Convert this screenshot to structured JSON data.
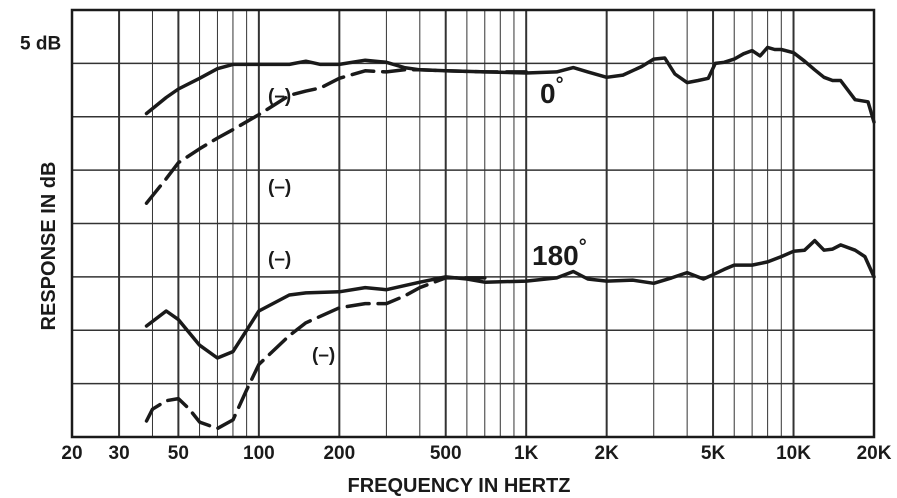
{
  "chart_data": {
    "type": "line",
    "xlabel": "FREQUENCY IN HERTZ",
    "ylabel": "RESPONSE IN dB",
    "x_scale": "log",
    "xlim": [
      20,
      20000
    ],
    "x_ticks": [
      20,
      30,
      50,
      100,
      200,
      500,
      1000,
      2000,
      5000,
      10000,
      20000
    ],
    "x_tick_labels": [
      "20",
      "30",
      "50",
      "100",
      "200",
      "500",
      "1K",
      "2K",
      "5K",
      "10K",
      "20K"
    ],
    "ylim": [
      -30,
      10
    ],
    "y_tick_label": "5 dB",
    "grid": true,
    "colors": {
      "ink": "#1a1a1a",
      "grid": "#333333",
      "background": "#ffffff"
    },
    "annotations": {
      "angle_top": "0",
      "angle_bottom": "180",
      "degree_symbol": "°",
      "solid_top": "(–)",
      "dashed_top": "(–)",
      "solid_bottom": "(–)",
      "dashed_bottom": "(–)"
    },
    "series": [
      {
        "style": "solid",
        "x": [
          38,
          45,
          50,
          60,
          70,
          80,
          100,
          130,
          150,
          170,
          200,
          250,
          300,
          350,
          400,
          500,
          700,
          1000,
          1300,
          1500,
          1700,
          2000,
          2300,
          2700,
          3000,
          3300,
          3600,
          4000,
          4400,
          4800,
          5100,
          5500,
          6000,
          6500,
          7000,
          7500,
          8000,
          8500,
          9000,
          10000,
          11000,
          12000,
          13000,
          14000,
          15000,
          17000,
          19000,
          20000
        ],
        "y": [
          0.3,
          1.8,
          2.6,
          3.6,
          4.5,
          4.9,
          4.9,
          4.9,
          5.2,
          4.9,
          4.9,
          5.3,
          5.1,
          4.6,
          4.4,
          4.3,
          4.2,
          4.1,
          4.2,
          4.6,
          4.2,
          3.7,
          3.9,
          4.7,
          5.4,
          5.5,
          4.0,
          3.2,
          3.4,
          3.6,
          5.0,
          5.1,
          5.4,
          5.9,
          6.2,
          5.7,
          6.5,
          6.3,
          6.3,
          6.0,
          5.2,
          4.4,
          3.7,
          3.4,
          3.4,
          1.6,
          1.4,
          -0.5
        ]
      },
      {
        "style": "dashed",
        "x": [
          38,
          45,
          50,
          60,
          70,
          80,
          100,
          130,
          150,
          170,
          200,
          250,
          300,
          350,
          400,
          500,
          700,
          1000
        ],
        "y": [
          -8.1,
          -5.8,
          -4.3,
          -3.0,
          -2.0,
          -1.2,
          0.2,
          2.0,
          2.4,
          2.7,
          3.6,
          4.3,
          4.2,
          4.4,
          4.4,
          4.3,
          4.2,
          4.2
        ]
      },
      {
        "style": "solid",
        "x": [
          38,
          45,
          50,
          60,
          70,
          80,
          100,
          130,
          150,
          200,
          250,
          300,
          400,
          500,
          600,
          700,
          1000,
          1300,
          1500,
          1700,
          2000,
          2500,
          3000,
          3500,
          4000,
          4600,
          5000,
          5500,
          6000,
          7000,
          8000,
          9000,
          10000,
          11000,
          12000,
          13000,
          14000,
          15000,
          17000,
          18500,
          20000
        ],
        "y": [
          -19.6,
          -18.2,
          -19.0,
          -21.4,
          -22.6,
          -22.0,
          -18.2,
          -16.7,
          -16.5,
          -16.4,
          -16.0,
          -16.2,
          -15.5,
          -15.0,
          -15.2,
          -15.5,
          -15.4,
          -15.1,
          -14.5,
          -15.2,
          -15.4,
          -15.3,
          -15.6,
          -15.1,
          -14.6,
          -15.2,
          -14.8,
          -14.3,
          -13.9,
          -13.9,
          -13.6,
          -13.1,
          -12.6,
          -12.5,
          -11.6,
          -12.5,
          -12.4,
          -12.0,
          -12.5,
          -13.1,
          -15.0
        ]
      },
      {
        "style": "dashed",
        "x": [
          38,
          40,
          45,
          50,
          55,
          60,
          70,
          80,
          90,
          100,
          130,
          150,
          200,
          250,
          300,
          350,
          400,
          500,
          700
        ],
        "y": [
          -28.5,
          -27.4,
          -26.6,
          -26.4,
          -27.4,
          -28.6,
          -29.2,
          -28.4,
          -25.6,
          -23.2,
          -20.5,
          -19.3,
          -17.9,
          -17.5,
          -17.5,
          -16.8,
          -16.0,
          -15.1,
          -15.1
        ]
      }
    ]
  }
}
